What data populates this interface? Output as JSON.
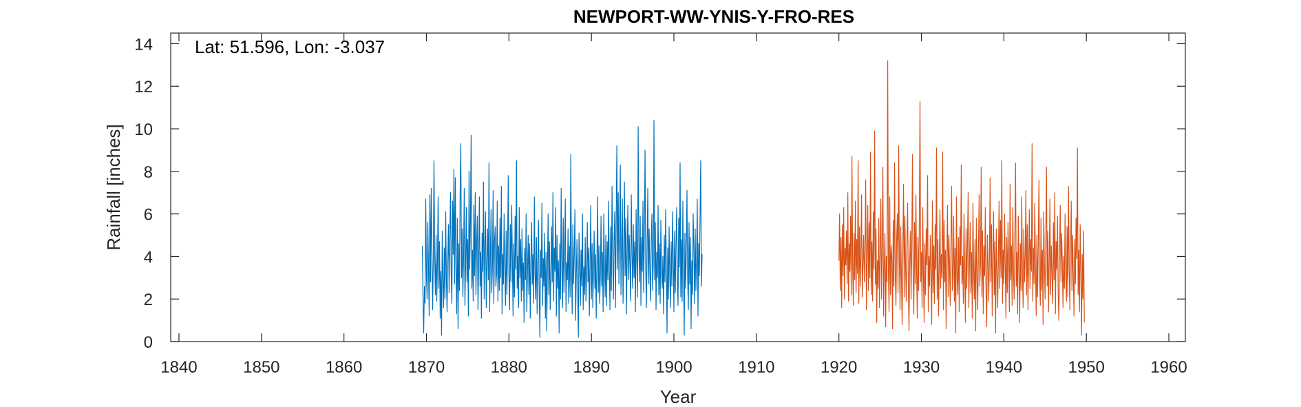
{
  "chart_data": {
    "type": "line",
    "title": "NEWPORT-WW-YNIS-Y-FRO-RES",
    "xlabel": "Year",
    "ylabel": "Rainfall [inches]",
    "annotation": "Lat: 51.596, Lon: -3.037",
    "xlim": [
      1839,
      1962
    ],
    "ylim": [
      0,
      14.5
    ],
    "xticks": [
      1840,
      1850,
      1860,
      1870,
      1880,
      1890,
      1900,
      1910,
      1920,
      1930,
      1940,
      1950,
      1960
    ],
    "yticks": [
      0,
      2,
      4,
      6,
      8,
      10,
      12,
      14
    ],
    "grid": false,
    "box": true,
    "series": [
      {
        "color": "#0072BD",
        "x_start": 1869.5,
        "x_step": 0.083333,
        "values": [
          4.5,
          2.1,
          0.4,
          2.6,
          1.8,
          6.7,
          3.1,
          2.0,
          5.6,
          3.4,
          1.2,
          6.9,
          2.8,
          7.2,
          4.3,
          1.5,
          3.9,
          8.5,
          4.0,
          2.2,
          5.0,
          1.9,
          3.6,
          6.8,
          2.5,
          4.7,
          1.1,
          3.3,
          0.3,
          5.2,
          2.9,
          1.6,
          4.4,
          2.0,
          6.1,
          3.0,
          1.4,
          3.8,
          5.5,
          2.3,
          4.9,
          7.0,
          3.2,
          1.8,
          6.6,
          4.1,
          8.1,
          2.7,
          7.7,
          3.5,
          1.3,
          5.8,
          0.6,
          4.6,
          2.4,
          6.9,
          9.3,
          3.0,
          5.3,
          2.1,
          4.0,
          7.2,
          1.7,
          3.6,
          6.3,
          2.8,
          4.8,
          1.2,
          8.0,
          3.4,
          5.6,
          9.7,
          2.5,
          4.3,
          1.9,
          6.4,
          3.1,
          7.0,
          2.2,
          4.6,
          5.9,
          1.5,
          3.7,
          6.8,
          2.6,
          4.2,
          1.1,
          5.1,
          3.3,
          7.5,
          2.0,
          4.4,
          6.1,
          1.6,
          3.8,
          5.3,
          2.9,
          8.4,
          1.4,
          4.0,
          6.2,
          2.3,
          3.5,
          7.1,
          1.8,
          4.7,
          5.4,
          2.6,
          3.2,
          6.6,
          1.9,
          4.5,
          2.4,
          5.8,
          3.0,
          7.3,
          1.3,
          4.1,
          2.7,
          6.0,
          3.6,
          1.7,
          5.2,
          2.2,
          4.3,
          7.8,
          3.1,
          1.5,
          5.5,
          2.8,
          6.4,
          3.9,
          1.2,
          4.6,
          2.1,
          5.9,
          3.4,
          8.5,
          2.5,
          4.0,
          1.6,
          6.3,
          3.0,
          4.8,
          1.9,
          5.3,
          2.4,
          3.7,
          0.9,
          4.4,
          2.9,
          6.0,
          1.4,
          3.3,
          5.0,
          2.2,
          4.6,
          1.1,
          3.8,
          5.6,
          2.7,
          4.1,
          1.8,
          6.8,
          3.2,
          2.0,
          4.9,
          1.3,
          3.6,
          5.7,
          2.4,
          0.2,
          4.3,
          3.0,
          6.5,
          1.7,
          3.9,
          2.6,
          5.1,
          1.1,
          4.2,
          0.5,
          3.5,
          6.0,
          2.2,
          4.7,
          1.5,
          3.1,
          5.4,
          2.8,
          7.0,
          1.9,
          4.4,
          3.3,
          6.3,
          1.2,
          5.0,
          2.5,
          3.8,
          0.4,
          4.6,
          2.0,
          7.2,
          3.4,
          1.6,
          5.8,
          2.3,
          4.1,
          6.7,
          1.4,
          3.7,
          2.9,
          5.3,
          1.8,
          4.5,
          2.1,
          8.8,
          3.6,
          1.3,
          5.5,
          2.7,
          4.0,
          6.2,
          1.0,
          3.2,
          4.8,
          2.4,
          0.2,
          5.1,
          3.8,
          1.7,
          4.3,
          2.6,
          6.0,
          1.5,
          3.5,
          2.2,
          4.9,
          1.9,
          3.0,
          5.6,
          2.8,
          4.4,
          1.2,
          3.7,
          6.4,
          2.0,
          4.6,
          1.6,
          3.3,
          5.2,
          2.5,
          4.1,
          1.1,
          3.8,
          6.8,
          2.3,
          4.5,
          1.8,
          3.1,
          5.9,
          2.6,
          4.2,
          1.4,
          6.0,
          3.5,
          2.1,
          5.0,
          1.7,
          4.7,
          2.9,
          6.6,
          3.3,
          1.5,
          5.4,
          2.4,
          7.3,
          3.9,
          2.0,
          4.8,
          6.1,
          1.6,
          5.7,
          9.2,
          3.4,
          7.0,
          2.7,
          5.2,
          8.3,
          2.2,
          4.6,
          6.7,
          1.8,
          4.0,
          7.5,
          3.1,
          5.8,
          1.3,
          4.3,
          6.4,
          2.9,
          5.0,
          3.6,
          1.9,
          6.9,
          4.1,
          2.5,
          5.5,
          3.0,
          4.7,
          1.4,
          6.2,
          3.8,
          2.1,
          10.1,
          4.4,
          2.8,
          5.9,
          1.7,
          4.9,
          3.3,
          6.6,
          2.3,
          5.1,
          9.0,
          3.5,
          1.6,
          4.5,
          7.2,
          2.7,
          5.3,
          3.2,
          1.9,
          4.8,
          6.0,
          2.4,
          3.7,
          10.4,
          2.9,
          5.6,
          1.5,
          4.2,
          3.0,
          6.4,
          2.2,
          4.6,
          1.8,
          5.7,
          3.4,
          2.5,
          4.0,
          1.3,
          5.0,
          2.8,
          6.2,
          3.6,
          0.4,
          4.4,
          2.0,
          5.4,
          3.1,
          1.6,
          4.7,
          2.6,
          6.1,
          3.9,
          1.4,
          5.2,
          2.3,
          4.5,
          6.3,
          2.9,
          1.7,
          5.8,
          3.5,
          8.4,
          2.1,
          4.8,
          1.9,
          6.6,
          3.3,
          0.3,
          5.1,
          2.5,
          4.2,
          7.1,
          3.0,
          1.5,
          5.6,
          2.7,
          4.9,
          0.6,
          3.8,
          2.2,
          6.0,
          4.4,
          1.8,
          5.3,
          2.4,
          3.9,
          6.7,
          1.2,
          4.6,
          3.1,
          5.8,
          8.5,
          2.6,
          4.1
        ]
      },
      {
        "color": "#D95319",
        "x_start": 1920.0,
        "x_step": 0.083333,
        "values": [
          3.8,
          6.0,
          2.4,
          4.9,
          1.6,
          5.5,
          3.1,
          6.3,
          2.0,
          4.4,
          3.6,
          5.2,
          2.7,
          7.0,
          1.9,
          4.6,
          3.3,
          5.9,
          2.2,
          8.7,
          3.5,
          1.7,
          5.1,
          2.9,
          6.6,
          2.3,
          4.8,
          3.2,
          8.5,
          1.8,
          5.4,
          2.6,
          4.1,
          6.9,
          2.1,
          3.7,
          5.0,
          2.8,
          4.3,
          7.6,
          1.5,
          3.9,
          6.4,
          2.4,
          5.6,
          3.0,
          8.9,
          2.2,
          4.7,
          1.9,
          6.1,
          3.4,
          9.9,
          2.7,
          5.3,
          0.9,
          3.8,
          2.5,
          5.8,
          1.6,
          4.2,
          6.7,
          2.0,
          4.6,
          8.2,
          1.2,
          3.6,
          5.1,
          0.7,
          4.0,
          2.8,
          13.2,
          3.3,
          1.4,
          6.8,
          2.2,
          4.5,
          3.9,
          0.6,
          5.7,
          2.6,
          8.4,
          3.2,
          1.7,
          4.8,
          6.0,
          2.3,
          9.2,
          3.7,
          1.5,
          5.4,
          2.9,
          0.8,
          4.3,
          7.4,
          2.1,
          5.9,
          3.5,
          1.9,
          4.7,
          6.5,
          2.5,
          0.5,
          3.8,
          5.2,
          2.0,
          4.4,
          8.8,
          3.1,
          1.3,
          5.6,
          2.7,
          6.9,
          3.4,
          1.1,
          4.9,
          2.4,
          5.8,
          11.3,
          2.8,
          4.2,
          1.6,
          6.3,
          3.0,
          0.9,
          4.6,
          2.2,
          5.3,
          3.6,
          7.8,
          1.4,
          4.0,
          2.6,
          5.0,
          3.2,
          0.8,
          6.6,
          2.3,
          4.5,
          1.8,
          5.5,
          3.4,
          9.1,
          2.0,
          4.8,
          1.2,
          3.7,
          6.2,
          2.5,
          4.1,
          3.0,
          8.9,
          1.5,
          5.7,
          2.8,
          4.3,
          0.6,
          3.9,
          6.4,
          2.1,
          5.0,
          3.5,
          1.7,
          4.7,
          7.3,
          2.4,
          3.3,
          5.9,
          1.9,
          4.4,
          0.4,
          6.8,
          3.0,
          2.2,
          4.9,
          1.4,
          5.4,
          3.6,
          8.3,
          2.7,
          4.0,
          1.8,
          6.0,
          3.2,
          0.9,
          5.3,
          2.5,
          4.6,
          7.0,
          1.6,
          3.8,
          5.6,
          2.3,
          4.2,
          1.1,
          6.5,
          3.4,
          2.0,
          4.8,
          0.5,
          5.8,
          3.0,
          1.5,
          4.4,
          6.9,
          2.6,
          3.7,
          8.2,
          2.1,
          5.2,
          1.3,
          4.5,
          3.1,
          6.3,
          2.4,
          0.7,
          5.0,
          3.6,
          1.9,
          4.1,
          7.7,
          2.8,
          5.5,
          1.2,
          3.9,
          6.1,
          2.2,
          4.7,
          0.4,
          5.3,
          3.3,
          1.6,
          4.0,
          6.6,
          2.5,
          5.7,
          3.0,
          8.5,
          1.8,
          4.3,
          2.7,
          6.0,
          3.5,
          1.1,
          4.9,
          2.3,
          5.6,
          3.8,
          1.4,
          7.4,
          2.9,
          4.5,
          1.7,
          6.3,
          3.2,
          2.0,
          5.1,
          8.4,
          2.6,
          4.2,
          1.3,
          5.9,
          3.4,
          0.9,
          4.6,
          2.4,
          6.8,
          3.1,
          1.6,
          5.3,
          2.8,
          4.0,
          7.1,
          2.2,
          5.5,
          1.5,
          3.7,
          6.2,
          2.5,
          4.8,
          3.3,
          9.3,
          1.9,
          4.4,
          2.7,
          6.5,
          3.5,
          1.2,
          5.0,
          2.1,
          4.6,
          7.6,
          3.0,
          1.7,
          5.8,
          2.4,
          4.3,
          0.8,
          6.1,
          3.6,
          2.0,
          4.9,
          8.2,
          2.6,
          5.2,
          1.4,
          3.9,
          6.7,
          2.2,
          4.5,
          3.1,
          1.8,
          5.6,
          2.9,
          7.0,
          1.3,
          4.7,
          3.4,
          5.9,
          2.3,
          1.0,
          4.2,
          6.4,
          2.8,
          5.1,
          3.7,
          1.6,
          4.0,
          2.5,
          6.0,
          3.2,
          1.9,
          5.4,
          2.1,
          7.3,
          3.5,
          1.5,
          4.6,
          6.6,
          2.4,
          5.0,
          3.0,
          1.2,
          4.8,
          2.7,
          5.8,
          3.9,
          9.1,
          2.2,
          4.3,
          1.4,
          5.5,
          3.3,
          0.3,
          4.1,
          2.0,
          5.2,
          0.9
        ]
      }
    ]
  }
}
